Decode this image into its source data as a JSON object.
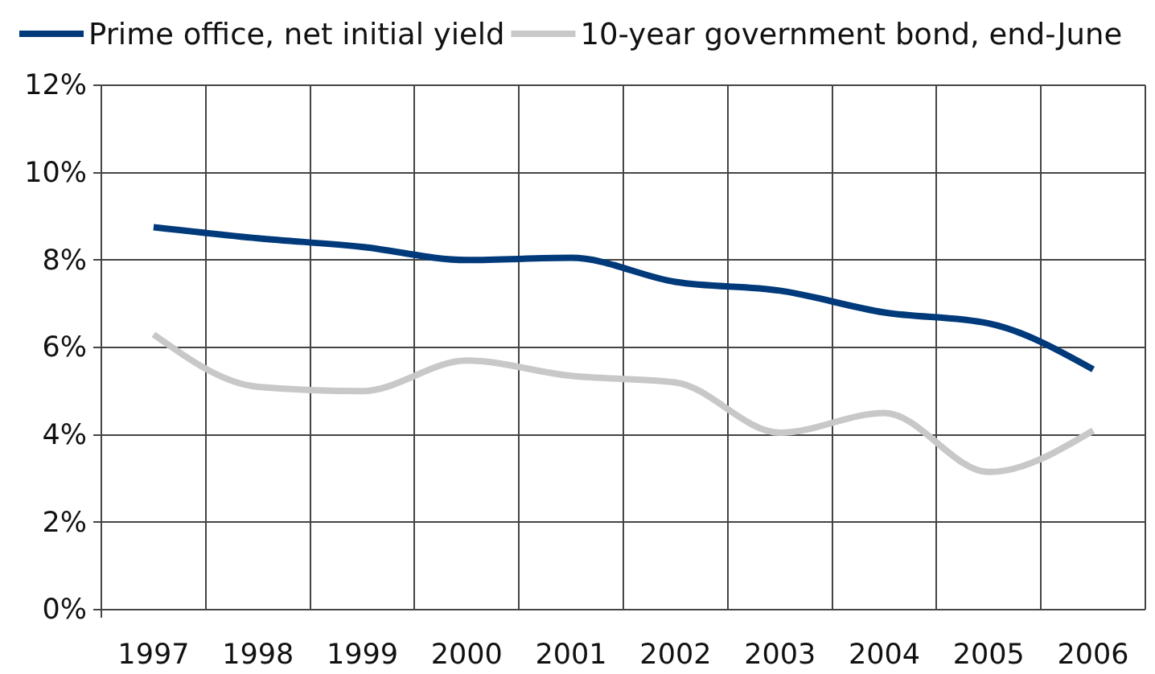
{
  "chart_data": {
    "type": "line",
    "categories": [
      "1997",
      "1998",
      "1999",
      "2000",
      "2001",
      "2002",
      "2003",
      "2004",
      "2005",
      "2006"
    ],
    "series": [
      {
        "name": "Prime office, net initial yield",
        "color": "#003a7a",
        "values": [
          8.75,
          8.5,
          8.3,
          8.0,
          8.05,
          7.5,
          7.3,
          6.8,
          6.55,
          5.5
        ]
      },
      {
        "name": "10-year government bond, end-June",
        "color": "#c8c8c8",
        "values": [
          6.3,
          5.1,
          5.0,
          5.7,
          5.35,
          5.2,
          4.05,
          4.5,
          3.15,
          4.1
        ]
      }
    ],
    "ylim": [
      0,
      12
    ],
    "yticks": [
      {
        "value": 0,
        "label": "0%"
      },
      {
        "value": 2,
        "label": "2%"
      },
      {
        "value": 4,
        "label": "4%"
      },
      {
        "value": 6,
        "label": "6%"
      },
      {
        "value": 8,
        "label": "8%"
      },
      {
        "value": 10,
        "label": "10%"
      },
      {
        "value": 12,
        "label": "12%"
      }
    ],
    "grid": true,
    "legend": "top left",
    "line_style": "solid"
  }
}
